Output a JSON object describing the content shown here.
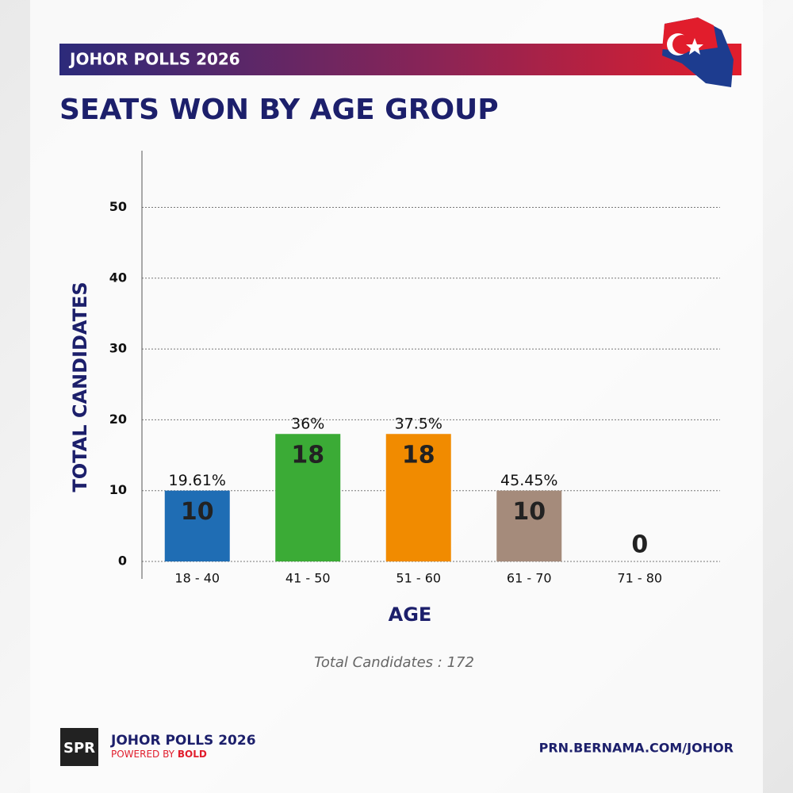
{
  "header": {
    "banner": "JOHOR POLLS 2026"
  },
  "chart_data": {
    "type": "bar",
    "title": "SEATS WON BY AGE GROUP",
    "x_label": "AGE",
    "y_label": "TOTAL CANDIDATES",
    "categories": [
      "18 - 40",
      "41 - 50",
      "51 - 60",
      "61 - 70",
      "71 - 80"
    ],
    "values": [
      10,
      18,
      18,
      10,
      0
    ],
    "colors": [
      "#1f6db4",
      "#3bab36",
      "#f18b00",
      "#a58b7b",
      "#888888"
    ],
    "annotations": [
      "19.61%",
      "36%",
      "37.5%",
      "45.45%",
      null
    ],
    "ylim": [
      0,
      58
    ],
    "yticks": [
      0,
      10,
      20,
      30,
      40,
      50
    ],
    "grid": true,
    "note": "Total Candidates : 172"
  },
  "footer": {
    "logo": "SPR",
    "brand": "JOHOR POLLS 2026",
    "powered_prefix": "POWERED BY",
    "powered_name": "BOLD",
    "url": "PRN.BERNAMA.COM/JOHOR"
  }
}
